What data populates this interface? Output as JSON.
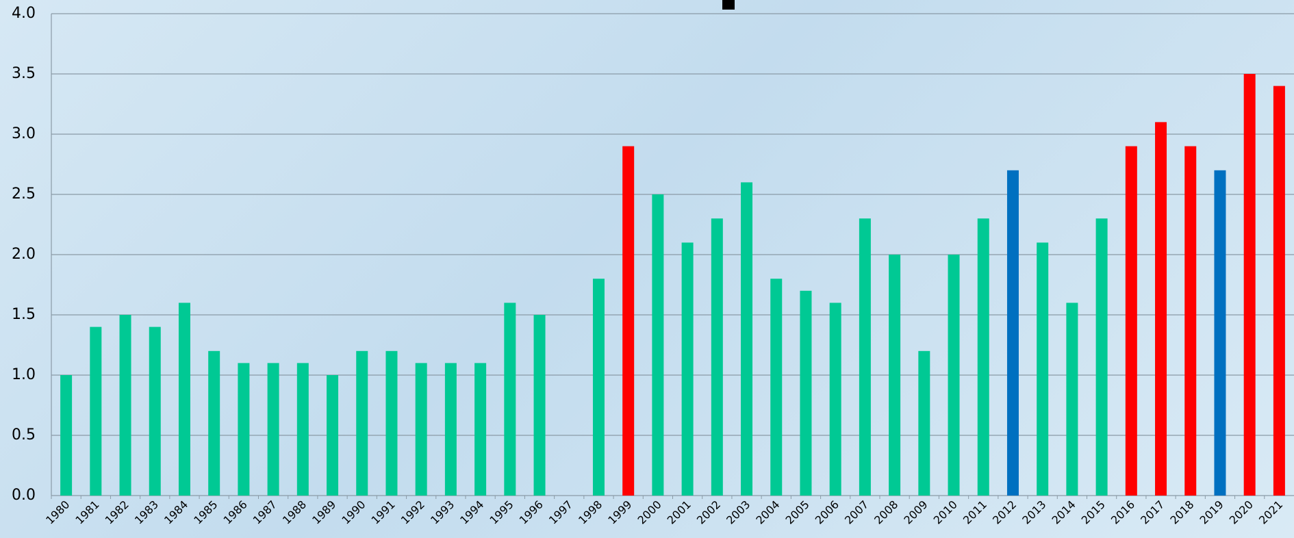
{
  "chart_data": {
    "type": "bar",
    "categories": [
      "1980",
      "1981",
      "1982",
      "1983",
      "1984",
      "1985",
      "1986",
      "1987",
      "1988",
      "1989",
      "1990",
      "1991",
      "1992",
      "1993",
      "1994",
      "1995",
      "1996",
      "1997",
      "1998",
      "1999",
      "2000",
      "2001",
      "2002",
      "2003",
      "2004",
      "2005",
      "2006",
      "2007",
      "2008",
      "2009",
      "2010",
      "2011",
      "2012",
      "2013",
      "2014",
      "2015",
      "2016",
      "2017",
      "2018",
      "2019",
      "2020",
      "2021"
    ],
    "values": [
      1.0,
      1.4,
      1.5,
      1.4,
      1.6,
      1.2,
      1.1,
      1.1,
      1.1,
      1.0,
      1.2,
      1.2,
      1.1,
      1.1,
      1.1,
      1.6,
      1.5,
      null,
      1.8,
      2.9,
      2.5,
      2.1,
      2.3,
      2.6,
      1.8,
      1.7,
      1.6,
      2.3,
      2.0,
      1.2,
      2.0,
      2.3,
      2.7,
      2.1,
      1.6,
      2.3,
      2.9,
      3.1,
      2.9,
      2.7,
      3.5,
      3.4
    ],
    "colors": [
      "#00c994",
      "#00c994",
      "#00c994",
      "#00c994",
      "#00c994",
      "#00c994",
      "#00c994",
      "#00c994",
      "#00c994",
      "#00c994",
      "#00c994",
      "#00c994",
      "#00c994",
      "#00c994",
      "#00c994",
      "#00c994",
      "#00c994",
      "#00c994",
      "#00c994",
      "#ff0000",
      "#00c994",
      "#00c994",
      "#00c994",
      "#00c994",
      "#00c994",
      "#00c994",
      "#00c994",
      "#00c994",
      "#00c994",
      "#00c994",
      "#00c994",
      "#00c994",
      "#0070c0",
      "#00c994",
      "#00c994",
      "#00c994",
      "#ff0000",
      "#ff0000",
      "#ff0000",
      "#0070c0",
      "#ff0000",
      "#ff0000"
    ],
    "ylim": [
      0,
      4
    ],
    "yticks": [
      {
        "value": 0,
        "label": "0.0"
      },
      0.5,
      {
        "value": 1,
        "label": "1.0"
      },
      1.5,
      {
        "value": 2,
        "label": "2.0"
      },
      2.5,
      {
        "value": 3,
        "label": "3.0"
      },
      3.5,
      {
        "value": 4,
        "label": "4.0"
      }
    ],
    "grid": true
  }
}
